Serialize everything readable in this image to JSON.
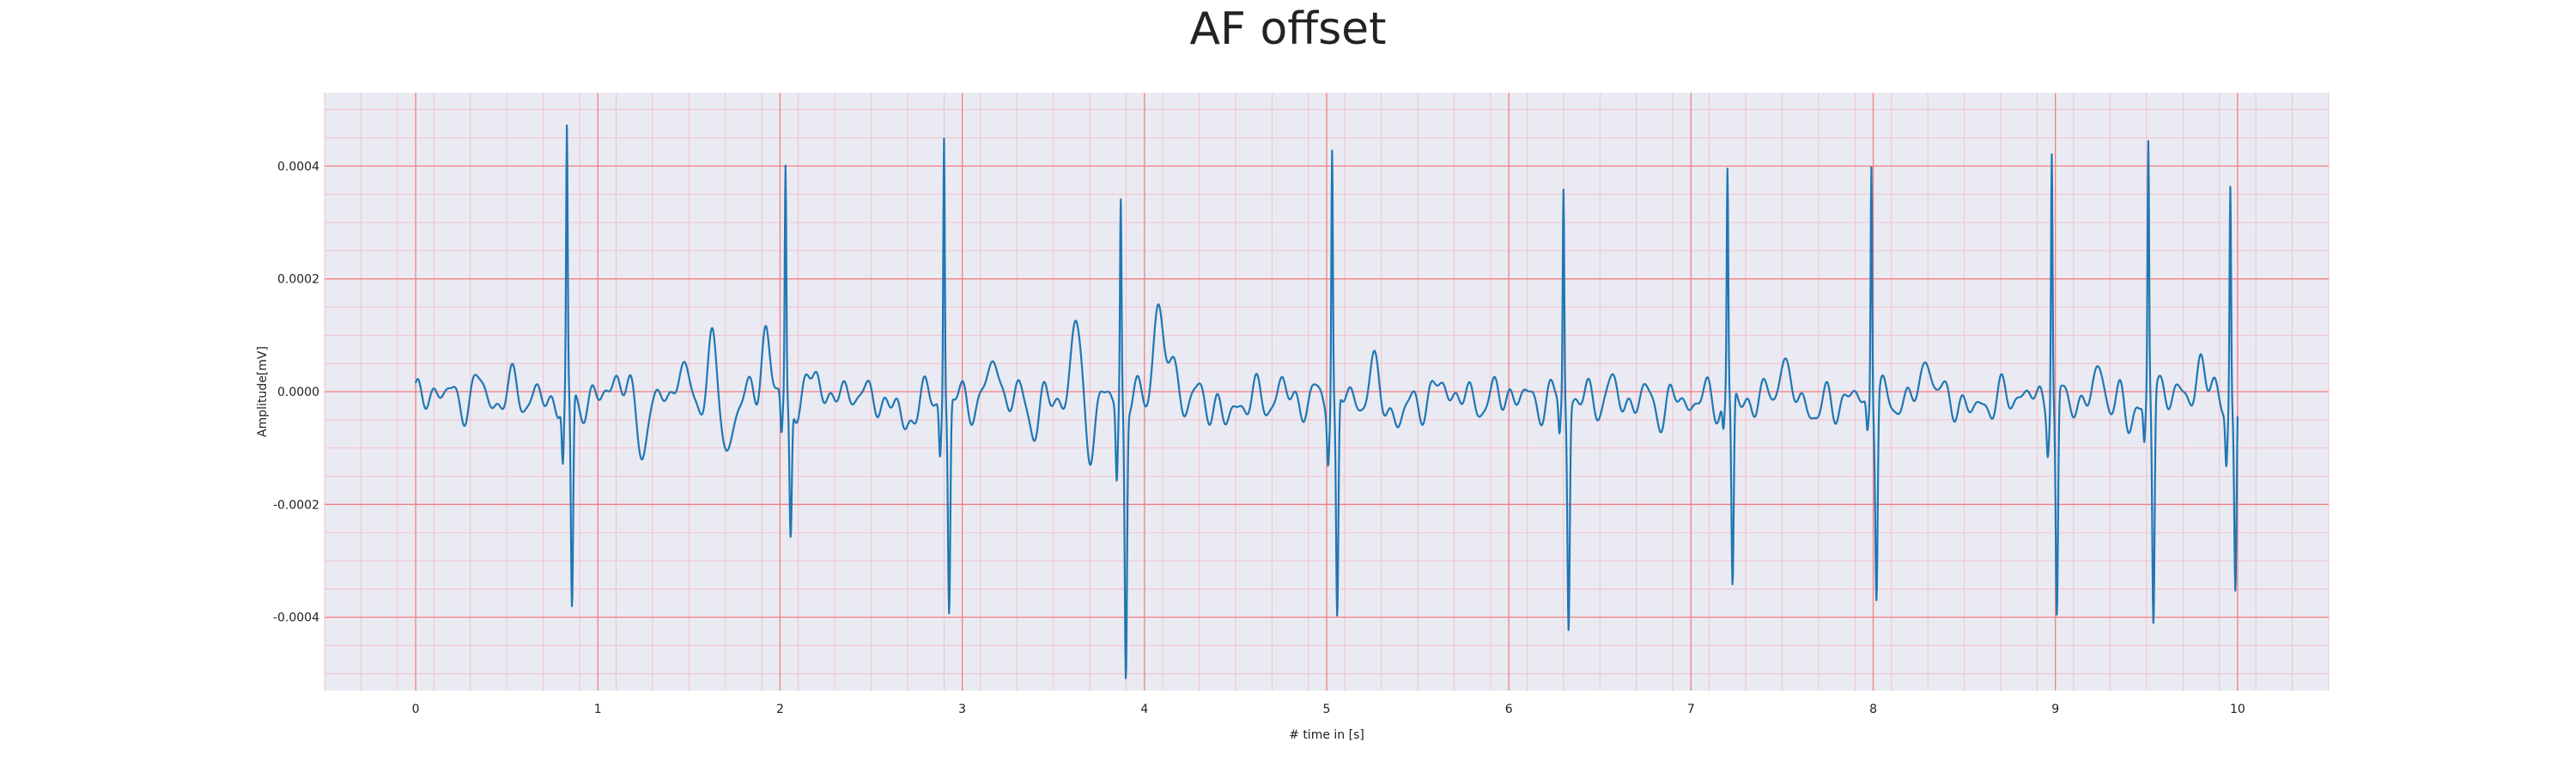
{
  "chart_data": {
    "type": "line",
    "title": "AF offset",
    "xlabel": "# time in [s]",
    "ylabel": "Amplitude[mV]",
    "xlim": [
      -0.5,
      10.5
    ],
    "ylim": [
      -0.00053,
      0.00053
    ],
    "x_ticks": [
      0,
      1,
      2,
      3,
      4,
      5,
      6,
      7,
      8,
      9,
      10
    ],
    "y_ticks": [
      -0.0004,
      -0.0002,
      0.0,
      0.0002,
      0.0004
    ],
    "y_tick_labels": [
      "-0.0004",
      "-0.0002",
      "0.0000",
      "0.0002",
      "0.0004"
    ],
    "grid": true,
    "minor_grid": true,
    "legend": "none",
    "colors": {
      "background": "#eaeaf2",
      "major_grid": "#f08080",
      "minor_grid": "#f4b8c4",
      "series": "#1f77b4"
    },
    "qrs_complexes": [
      {
        "t": 0.83,
        "q": -0.00011,
        "r": 0.00046,
        "s": -0.00039
      },
      {
        "t": 2.03,
        "q": -7e-05,
        "r": 0.00041,
        "s": -0.00024
      },
      {
        "t": 2.9,
        "q": -9e-05,
        "r": 0.00048,
        "s": -0.00038
      },
      {
        "t": 3.87,
        "q": -0.00013,
        "r": 0.00036,
        "s": -0.00048
      },
      {
        "t": 5.03,
        "q": -8e-05,
        "r": 0.00046,
        "s": -0.0004
      },
      {
        "t": 6.3,
        "q": -6e-05,
        "r": 0.00038,
        "s": -0.00039
      },
      {
        "t": 7.2,
        "q": -5e-05,
        "r": 0.0004,
        "s": -0.00035
      },
      {
        "t": 7.99,
        "q": -5e-05,
        "r": 0.00044,
        "s": -0.00034
      },
      {
        "t": 8.98,
        "q": -6e-05,
        "r": 0.00046,
        "s": -0.0004
      },
      {
        "t": 9.51,
        "q": -7e-05,
        "r": 0.00045,
        "s": -0.00041
      },
      {
        "t": 9.96,
        "q": -9e-05,
        "r": 0.0004,
        "s": -0.00035
      }
    ],
    "baseline_waves": [
      {
        "t": 0.12,
        "v": 3e-05
      },
      {
        "t": 0.35,
        "v": 3e-05
      },
      {
        "t": 0.55,
        "v": 3e-05
      },
      {
        "t": 1.1,
        "v": 6e-05
      },
      {
        "t": 1.25,
        "v": -8e-05
      },
      {
        "t": 1.45,
        "v": 7e-05
      },
      {
        "t": 1.63,
        "v": 0.00011
      },
      {
        "t": 1.7,
        "v": -0.00011
      },
      {
        "t": 1.92,
        "v": 0.00013
      },
      {
        "t": 2.2,
        "v": 6e-05
      },
      {
        "t": 2.4,
        "v": 3e-05
      },
      {
        "t": 2.68,
        "v": -6e-05
      },
      {
        "t": 3.18,
        "v": 8e-05
      },
      {
        "t": 3.4,
        "v": -4e-05
      },
      {
        "t": 3.62,
        "v": 0.00013
      },
      {
        "t": 3.7,
        "v": -7e-05
      },
      {
        "t": 4.07,
        "v": 0.00017
      },
      {
        "t": 4.15,
        "v": 8e-05
      },
      {
        "t": 4.45,
        "v": -5e-05
      },
      {
        "t": 4.75,
        "v": 2e-05
      },
      {
        "t": 5.25,
        "v": 5e-05
      },
      {
        "t": 5.4,
        "v": -5e-05
      },
      {
        "t": 5.65,
        "v": 4e-05
      },
      {
        "t": 6.0,
        "v": 2e-05
      },
      {
        "t": 6.55,
        "v": 2e-05
      },
      {
        "t": 6.85,
        "v": -2e-05
      },
      {
        "t": 7.5,
        "v": 8e-05
      },
      {
        "t": 7.7,
        "v": -3e-05
      },
      {
        "t": 8.3,
        "v": 9e-05
      },
      {
        "t": 8.55,
        "v": -3e-05
      },
      {
        "t": 8.8,
        "v": 2e-05
      },
      {
        "t": 9.25,
        "v": 5e-05
      },
      {
        "t": 9.4,
        "v": -4e-05
      },
      {
        "t": 9.6,
        "v": 4e-05
      },
      {
        "t": 9.8,
        "v": 8e-05
      }
    ],
    "trace_span": [
      0.0,
      10.0
    ]
  }
}
